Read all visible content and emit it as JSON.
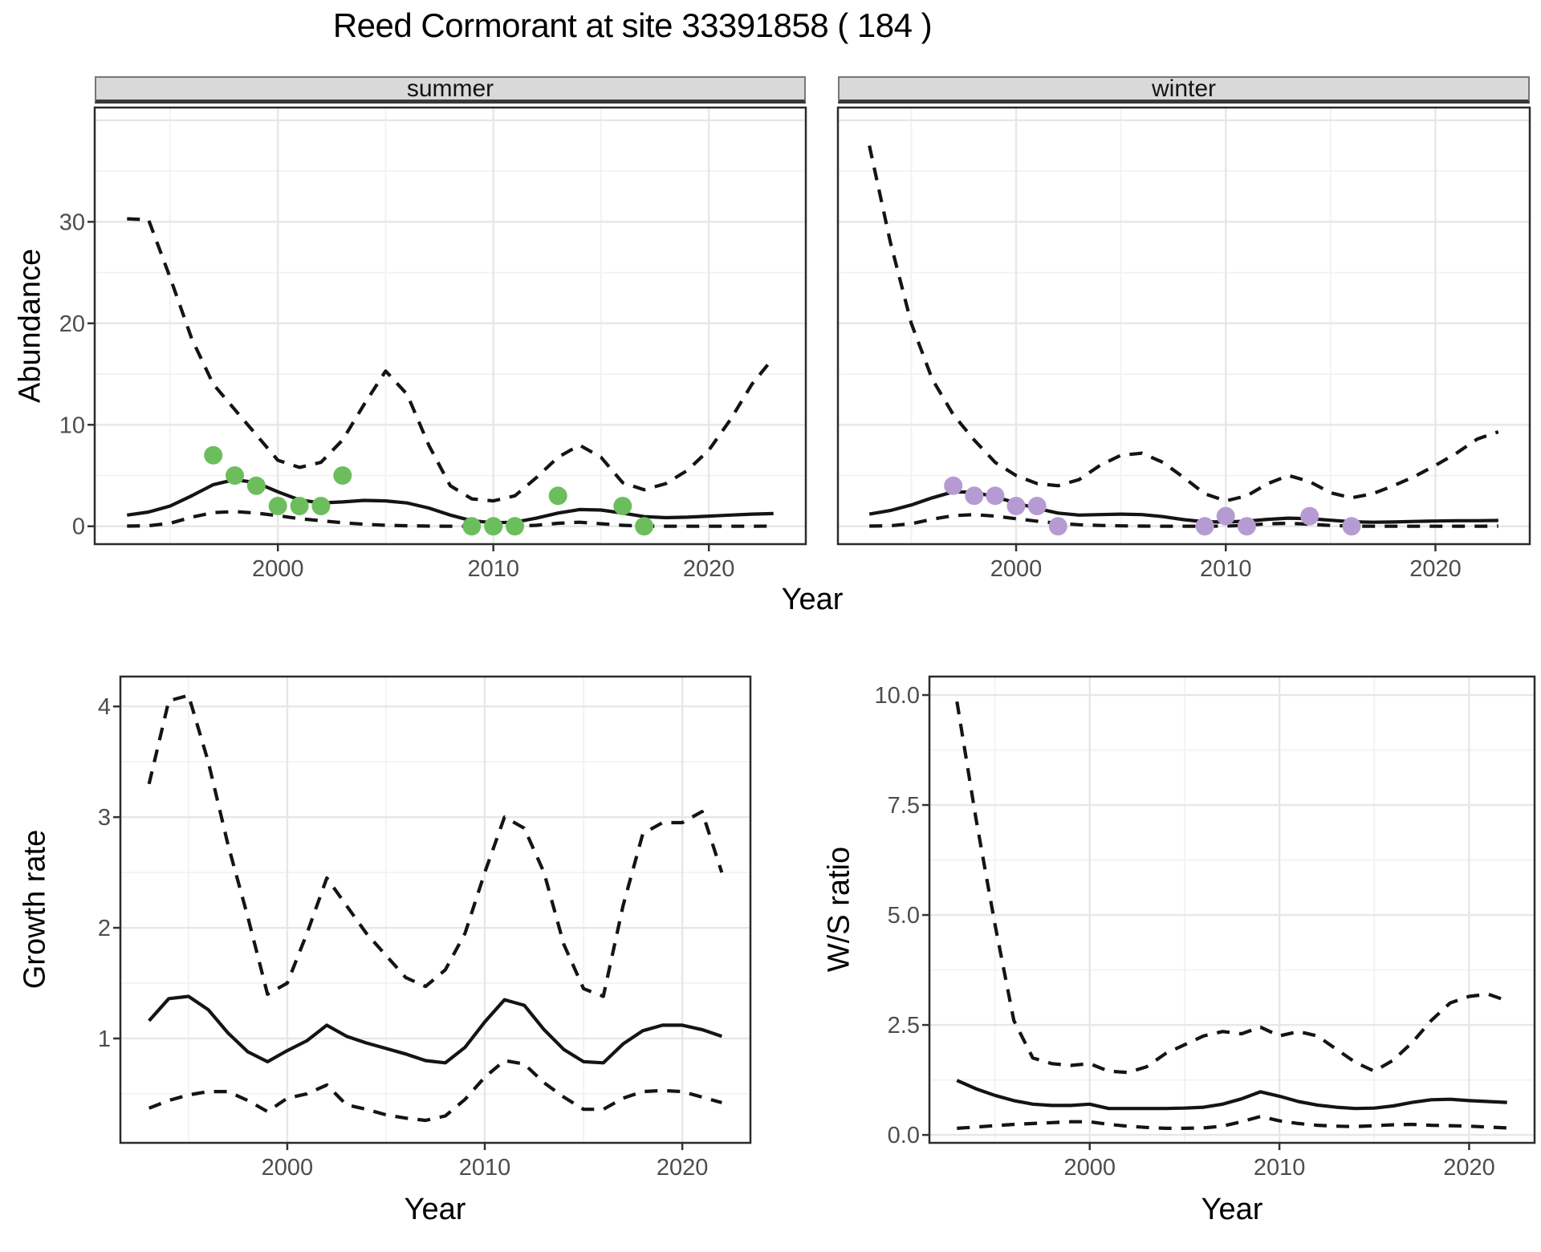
{
  "title": "Reed Cormorant at site 33391858 ( 184 )",
  "colors": {
    "summer_point": "#6cbe5d",
    "winter_point": "#b69bd3",
    "line": "#141414",
    "grid_major": "#e7e7e7",
    "grid_minor": "#f2f2f2",
    "panel_border": "#2b2b2b",
    "strip_bg": "#d9d9d9",
    "tick_text": "#4d4d4d"
  },
  "chart_data": [
    {
      "type": "line",
      "facet_label": "summer",
      "ylabel": "Abundance",
      "xlabel": "Year",
      "xlim": [
        1991.5,
        2024.5
      ],
      "ylim": [
        -1.76,
        41.26
      ],
      "xticks": [
        2000,
        2010,
        2020
      ],
      "xtick_labels": [
        "2000",
        "2010",
        "2020"
      ],
      "yticks": [
        0,
        10,
        20,
        30
      ],
      "ytick_labels": [
        "0",
        "10",
        "20",
        "30"
      ],
      "grid_major_y": [
        0,
        10,
        20,
        30,
        40
      ],
      "grid_minor_y": [
        5,
        15,
        25,
        35
      ],
      "grid_major_x": [
        2000,
        2010,
        2020
      ],
      "grid_minor_x": [
        1995,
        2005,
        2015
      ],
      "x": [
        1993,
        1994,
        1995,
        1996,
        1997,
        1998,
        1999,
        2000,
        2001,
        2002,
        2003,
        2004,
        2005,
        2006,
        2007,
        2008,
        2009,
        2010,
        2011,
        2012,
        2013,
        2014,
        2015,
        2016,
        2017,
        2018,
        2019,
        2020,
        2021,
        2022,
        2023
      ],
      "series": [
        {
          "name": "upper_95ci",
          "style": "dashed",
          "values": [
            30.3,
            30.2,
            24.5,
            18.5,
            14,
            11.5,
            9,
            6.5,
            5.8,
            6.3,
            8.5,
            12,
            15.3,
            13,
            8,
            4,
            2.7,
            2.5,
            3,
            4.8,
            6.8,
            8,
            6.8,
            4.3,
            3.6,
            4.2,
            5.5,
            7.5,
            10.5,
            14,
            16.6
          ]
        },
        {
          "name": "mean_fit",
          "style": "solid",
          "values": [
            1.1,
            1.4,
            2,
            3,
            4.1,
            4.6,
            4.3,
            3.4,
            2.6,
            2.3,
            2.4,
            2.55,
            2.5,
            2.3,
            1.8,
            1.1,
            0.55,
            0.35,
            0.4,
            0.8,
            1.3,
            1.65,
            1.6,
            1.3,
            0.95,
            0.85,
            0.9,
            1,
            1.1,
            1.2,
            1.25
          ]
        },
        {
          "name": "lower_95ci",
          "style": "dashed",
          "values": [
            0.02,
            0.05,
            0.3,
            0.9,
            1.35,
            1.45,
            1.3,
            1.05,
            0.75,
            0.55,
            0.35,
            0.2,
            0.1,
            0.05,
            0.02,
            0,
            0,
            0,
            0,
            0.1,
            0.3,
            0.4,
            0.25,
            0.1,
            0.02,
            0,
            0,
            0,
            0,
            0,
            0.02
          ]
        }
      ],
      "points": {
        "name": "observed_counts_summer",
        "color_key": "summer_point",
        "x": [
          1997,
          1998,
          1999,
          2000,
          2001,
          2002,
          2003,
          2009,
          2010,
          2011,
          2013,
          2016,
          2017
        ],
        "y": [
          7,
          5,
          4,
          2,
          2,
          2,
          5,
          0,
          0,
          0,
          3,
          2,
          0
        ]
      }
    },
    {
      "type": "line",
      "facet_label": "winter",
      "ylabel": "",
      "xlabel": "Year",
      "xlim": [
        1991.5,
        2024.5
      ],
      "ylim": [
        -1.76,
        41.26
      ],
      "xticks": [
        2000,
        2010,
        2020
      ],
      "xtick_labels": [
        "2000",
        "2010",
        "2020"
      ],
      "yticks": [],
      "ytick_labels": [],
      "grid_major_y": [
        0,
        10,
        20,
        30,
        40
      ],
      "grid_minor_y": [
        5,
        15,
        25,
        35
      ],
      "grid_major_x": [
        2000,
        2010,
        2020
      ],
      "grid_minor_x": [
        1995,
        2005,
        2015
      ],
      "x": [
        1993,
        1994,
        1995,
        1996,
        1997,
        1998,
        1999,
        2000,
        2001,
        2002,
        2003,
        2004,
        2005,
        2006,
        2007,
        2008,
        2009,
        2010,
        2011,
        2012,
        2013,
        2014,
        2015,
        2016,
        2017,
        2018,
        2019,
        2020,
        2021,
        2022,
        2023
      ],
      "series": [
        {
          "name": "upper_95ci",
          "style": "dashed",
          "values": [
            37.5,
            28,
            20,
            14.5,
            11,
            8.5,
            6.3,
            5,
            4.2,
            4,
            4.6,
            6,
            7,
            7.2,
            6.3,
            4.8,
            3.2,
            2.5,
            3,
            4.2,
            5,
            4.4,
            3.3,
            2.8,
            3.2,
            4,
            4.9,
            6,
            7.2,
            8.6,
            9.3
          ]
        },
        {
          "name": "mean_fit",
          "style": "solid",
          "values": [
            1.2,
            1.55,
            2.1,
            2.8,
            3.4,
            3.35,
            2.9,
            2.3,
            1.75,
            1.3,
            1.1,
            1.15,
            1.2,
            1.15,
            0.95,
            0.65,
            0.45,
            0.42,
            0.5,
            0.68,
            0.8,
            0.75,
            0.6,
            0.45,
            0.4,
            0.42,
            0.48,
            0.52,
            0.55,
            0.55,
            0.57
          ]
        },
        {
          "name": "lower_95ci",
          "style": "dashed",
          "values": [
            0.02,
            0.05,
            0.25,
            0.7,
            1.05,
            1.15,
            1,
            0.75,
            0.5,
            0.3,
            0.15,
            0.08,
            0.04,
            0.02,
            0,
            0,
            0,
            0.02,
            0.1,
            0.25,
            0.3,
            0.2,
            0.08,
            0.02,
            0,
            0,
            0,
            0,
            0,
            0,
            0.02
          ]
        }
      ],
      "points": {
        "name": "observed_counts_winter",
        "color_key": "winter_point",
        "x": [
          1997,
          1998,
          1999,
          2000,
          2001,
          2002,
          2009,
          2010,
          2011,
          2014,
          2016
        ],
        "y": [
          4,
          3,
          3,
          2,
          2,
          0,
          0,
          1,
          0,
          1,
          0
        ]
      }
    },
    {
      "type": "line",
      "facet_label": "",
      "ylabel": "Growth rate",
      "xlabel": "Year",
      "xlim": [
        1991.55,
        2023.45
      ],
      "ylim": [
        0.057,
        4.27
      ],
      "xticks": [
        2000,
        2010,
        2020
      ],
      "xtick_labels": [
        "2000",
        "2010",
        "2020"
      ],
      "yticks": [
        1,
        2,
        3,
        4
      ],
      "ytick_labels": [
        "1",
        "2",
        "3",
        "4"
      ],
      "grid_major_y": [
        1,
        2,
        3,
        4
      ],
      "grid_minor_y": [
        0.5,
        1.5,
        2.5,
        3.5
      ],
      "grid_major_x": [
        2000,
        2010,
        2020
      ],
      "grid_minor_x": [
        1995,
        2005,
        2015
      ],
      "x": [
        1993,
        1994,
        1995,
        1996,
        1997,
        1998,
        1999,
        2000,
        2001,
        2002,
        2003,
        2004,
        2005,
        2006,
        2007,
        2008,
        2009,
        2010,
        2011,
        2012,
        2013,
        2014,
        2015,
        2016,
        2017,
        2018,
        2019,
        2020,
        2021,
        2022
      ],
      "series": [
        {
          "name": "upper_95ci",
          "style": "dashed",
          "values": [
            3.3,
            4.05,
            4.1,
            3.5,
            2.75,
            2.1,
            1.4,
            1.5,
            1.95,
            2.45,
            2.2,
            1.95,
            1.75,
            1.55,
            1.47,
            1.62,
            1.95,
            2.5,
            3,
            2.9,
            2.5,
            1.85,
            1.45,
            1.38,
            2.2,
            2.85,
            2.95,
            2.95,
            3.05,
            2.5
          ]
        },
        {
          "name": "mean_fit",
          "style": "solid",
          "values": [
            1.16,
            1.36,
            1.38,
            1.26,
            1.05,
            0.88,
            0.79,
            0.89,
            0.98,
            1.12,
            1.02,
            0.96,
            0.91,
            0.86,
            0.8,
            0.78,
            0.92,
            1.15,
            1.35,
            1.3,
            1.08,
            0.9,
            0.79,
            0.78,
            0.95,
            1.07,
            1.12,
            1.12,
            1.08,
            1.02
          ]
        },
        {
          "name": "lower_95ci",
          "style": "dashed",
          "values": [
            0.37,
            0.44,
            0.49,
            0.52,
            0.52,
            0.44,
            0.34,
            0.46,
            0.5,
            0.58,
            0.4,
            0.36,
            0.31,
            0.28,
            0.26,
            0.3,
            0.45,
            0.65,
            0.8,
            0.77,
            0.6,
            0.47,
            0.36,
            0.36,
            0.46,
            0.52,
            0.53,
            0.52,
            0.47,
            0.42
          ]
        }
      ],
      "points": null
    },
    {
      "type": "line",
      "facet_label": "",
      "ylabel": "W/S ratio",
      "xlabel": "Year",
      "xlim": [
        1991.55,
        2023.45
      ],
      "ylim": [
        -0.18,
        10.42
      ],
      "xticks": [
        2000,
        2010,
        2020
      ],
      "xtick_labels": [
        "2000",
        "2010",
        "2020"
      ],
      "yticks": [
        0,
        2.5,
        5,
        7.5,
        10
      ],
      "ytick_labels": [
        "0.0",
        "2.5",
        "5.0",
        "7.5",
        "10.0"
      ],
      "grid_major_y": [
        0,
        2.5,
        5,
        7.5,
        10
      ],
      "grid_minor_y": [
        1.25,
        3.75,
        6.25,
        8.75
      ],
      "grid_major_x": [
        2000,
        2010,
        2020
      ],
      "grid_minor_x": [
        1995,
        2005,
        2015
      ],
      "x": [
        1993,
        1994,
        1995,
        1996,
        1997,
        1998,
        1999,
        2000,
        2001,
        2002,
        2003,
        2004,
        2005,
        2006,
        2007,
        2008,
        2009,
        2010,
        2011,
        2012,
        2013,
        2014,
        2015,
        2016,
        2017,
        2018,
        2019,
        2020,
        2021,
        2022
      ],
      "series": [
        {
          "name": "upper_95ci",
          "style": "dashed",
          "values": [
            9.85,
            7.2,
            4.8,
            2.6,
            1.75,
            1.62,
            1.58,
            1.62,
            1.45,
            1.42,
            1.55,
            1.85,
            2.05,
            2.25,
            2.35,
            2.3,
            2.45,
            2.25,
            2.35,
            2.25,
            1.95,
            1.65,
            1.45,
            1.7,
            2.1,
            2.6,
            3,
            3.15,
            3.2,
            3.05
          ]
        },
        {
          "name": "mean_fit",
          "style": "solid",
          "values": [
            1.24,
            1.05,
            0.9,
            0.78,
            0.7,
            0.67,
            0.67,
            0.7,
            0.6,
            0.6,
            0.6,
            0.6,
            0.61,
            0.63,
            0.7,
            0.82,
            0.98,
            0.88,
            0.76,
            0.68,
            0.63,
            0.6,
            0.61,
            0.66,
            0.74,
            0.8,
            0.81,
            0.78,
            0.76,
            0.74
          ]
        },
        {
          "name": "lower_95ci",
          "style": "dashed",
          "values": [
            0.15,
            0.18,
            0.21,
            0.24,
            0.26,
            0.28,
            0.3,
            0.3,
            0.24,
            0.2,
            0.17,
            0.15,
            0.15,
            0.16,
            0.2,
            0.3,
            0.42,
            0.32,
            0.26,
            0.22,
            0.2,
            0.19,
            0.21,
            0.23,
            0.24,
            0.22,
            0.21,
            0.2,
            0.18,
            0.16
          ]
        }
      ],
      "points": null
    }
  ]
}
